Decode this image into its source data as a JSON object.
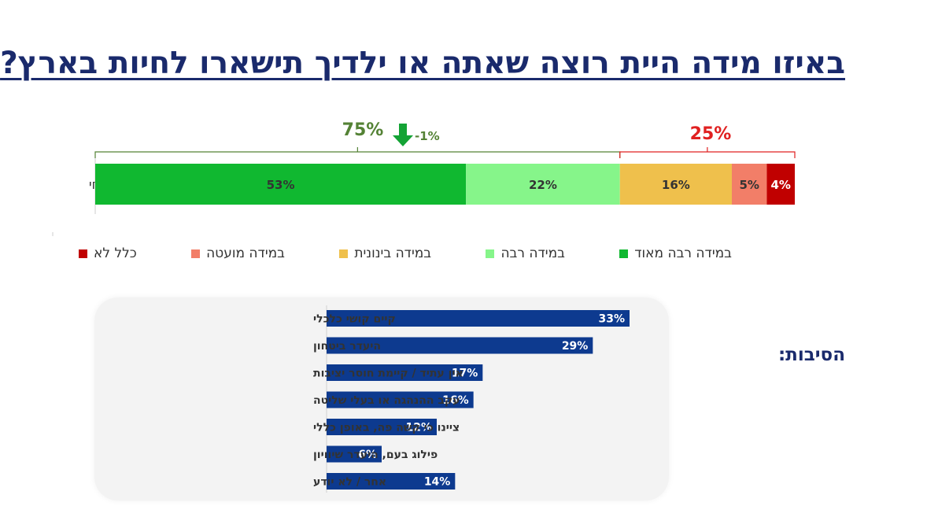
{
  "title": "באיזו מידה היית רוצה שאתה או ילדיך תישארו לחיות בארץ?",
  "chart_data": [
    {
      "type": "bar",
      "orientation": "horizontal-stacked",
      "categories": [
        "סקר נוכחי"
      ],
      "series": [
        {
          "name": "במידה רבה מאוד",
          "values": [
            53
          ],
          "color": "#10b830",
          "label": "53%"
        },
        {
          "name": "במידה רבה",
          "values": [
            22
          ],
          "color": "#86f58a",
          "label": "22%"
        },
        {
          "name": "במידה בינונית",
          "values": [
            16
          ],
          "color": "#efc04c",
          "label": "16%"
        },
        {
          "name": "במידה מועטה",
          "values": [
            5
          ],
          "color": "#f27e68",
          "label": "5%"
        },
        {
          "name": "כלל לא",
          "values": [
            4
          ],
          "color": "#c00000",
          "label": "4%"
        }
      ],
      "annotations": {
        "positive_total": "75%",
        "positive_color": "#548235",
        "change": "-1%",
        "change_direction": "down",
        "change_color": "#14a335",
        "negative_total": "25%",
        "negative_color": "#e02020"
      },
      "legend_position": "bottom"
    },
    {
      "type": "bar",
      "orientation": "horizontal",
      "title": "הסיבות:",
      "categories": [
        "קיים קושי כלכלי",
        "היעדר ביטחון",
        "אין עתיד / קיימת חוסר יציבות",
        "עקב ההנהגה או בעלי שליטה",
        "ציינו כי קשה פה, באופן כללי",
        "פילוג בעם, היעדר שיוויון",
        "אחר / לא יודע"
      ],
      "values": [
        33,
        29,
        17,
        16,
        12,
        6,
        14
      ],
      "labels": [
        "33%",
        "29%",
        "17%",
        "16%",
        "12%",
        "6%",
        "14%"
      ],
      "color": "#0d3a8f"
    }
  ]
}
